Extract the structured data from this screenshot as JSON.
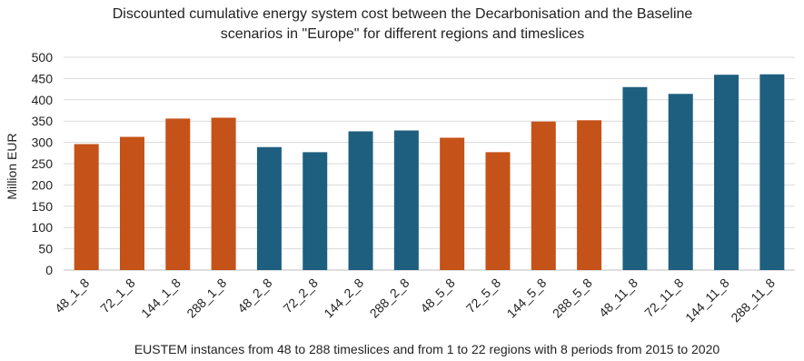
{
  "chart_data": {
    "type": "bar",
    "title": "Discounted cumulative energy system cost between the Decarbonisation and the Baseline scenarios in \"Europe\" for different regions and timeslices",
    "title_lines": [
      "Discounted cumulative energy system cost between the Decarbonisation and the Baseline",
      "scenarios in \"Europe\" for different regions and timeslices"
    ],
    "xlabel": "EUSTEM instances from 48 to 288 timeslices and from 1 to 22 regions with 8 periods from 2015 to 2020",
    "ylabel": "Million EUR",
    "ylim": [
      0,
      500
    ],
    "yticks": [
      0,
      50,
      100,
      150,
      200,
      250,
      300,
      350,
      400,
      450,
      500
    ],
    "grid": true,
    "legend": "none",
    "categories": [
      "48_1_8",
      "72_1_8",
      "144_1_8",
      "288_1_8",
      "48_2_8",
      "72_2_8",
      "144_2_8",
      "288_2_8",
      "48_5_8",
      "72_5_8",
      "144_5_8",
      "288_5_8",
      "48_11_8",
      "72_11_8",
      "144_11_8",
      "288_11_8"
    ],
    "values": [
      296,
      313,
      356,
      358,
      289,
      277,
      326,
      328,
      311,
      277,
      349,
      352,
      430,
      414,
      459,
      460
    ],
    "bar_colors": [
      "#c55219",
      "#c55219",
      "#c55219",
      "#c55219",
      "#1e5f80",
      "#1e5f80",
      "#1e5f80",
      "#1e5f80",
      "#c55219",
      "#c55219",
      "#c55219",
      "#c55219",
      "#1e5f80",
      "#1e5f80",
      "#1e5f80",
      "#1e5f80"
    ],
    "colors": {
      "orange": "#c55219",
      "blue": "#1e5f80"
    }
  }
}
